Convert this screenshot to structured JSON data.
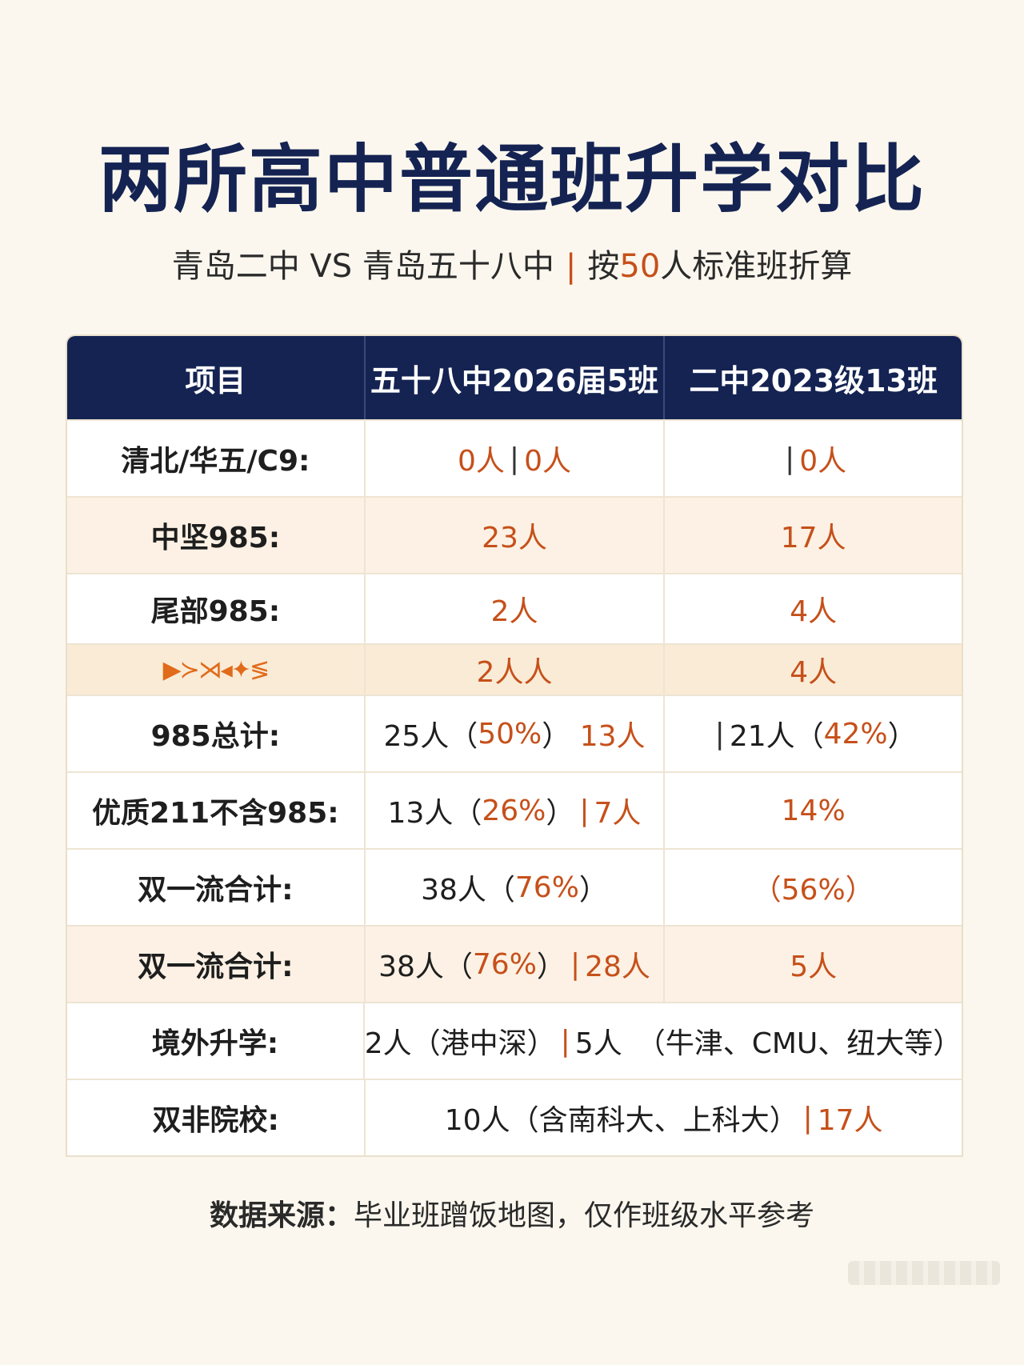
{
  "title": "两所高中普通班升学对比",
  "subtitle": {
    "main": "青岛二中 VS 青岛五十八中",
    "sep": "|",
    "prefix": "按",
    "num": "50",
    "suffix": "人标准班折算"
  },
  "table": {
    "headers": [
      "项目",
      "五十八中2026届5班",
      "二中2023级13班"
    ],
    "rows": [
      {
        "label": "清北/华五/C9:",
        "a1": "0人",
        "a_bar": "|",
        "a2": "0人",
        "b_bar": "|",
        "b": "0人"
      },
      {
        "label": "中坚985:",
        "a": "23人",
        "b": "17人"
      },
      {
        "label": "尾部985:",
        "a": "2人",
        "b": "4人"
      },
      {
        "label": "▶≻⋊◂✦≶",
        "a": "2人人",
        "b": "4人"
      },
      {
        "label": "985总计:",
        "a_main": "25人（",
        "a_pct": "50%",
        "a_close": "）",
        "a_extra": "13人",
        "b_bar": "|",
        "b_main": "21人（",
        "b_pct": "42%",
        "b_close": "）"
      },
      {
        "label": "优质211不含985:",
        "a_main": "13人（",
        "a_pct": "26%",
        "a_close": "）",
        "a_bar": "|",
        "a_extra": "7人",
        "b": "14%"
      },
      {
        "label": "双一流合计:",
        "a_main": "38人（",
        "a_pct": "76%",
        "a_close": "）",
        "b": "（56%）"
      },
      {
        "label": "双一流合计:",
        "a_main": "38人（",
        "a_pct": "76%",
        "a_close": "）",
        "a_bar": "|",
        "a_extra": "28人",
        "b": "5人"
      },
      {
        "label": "境外升学:",
        "text1": "2人（港中深）",
        "bar": "|",
        "text2": "5人　（牛津、CMU、纽大等）"
      },
      {
        "label": "双非院校:",
        "text1": "10人（含南科大、上科大）",
        "bar": "|",
        "text2": "17人"
      }
    ]
  },
  "footer": {
    "label": "数据来源：",
    "text": "毕业班蹭饭地图，仅作班级水平参考"
  }
}
